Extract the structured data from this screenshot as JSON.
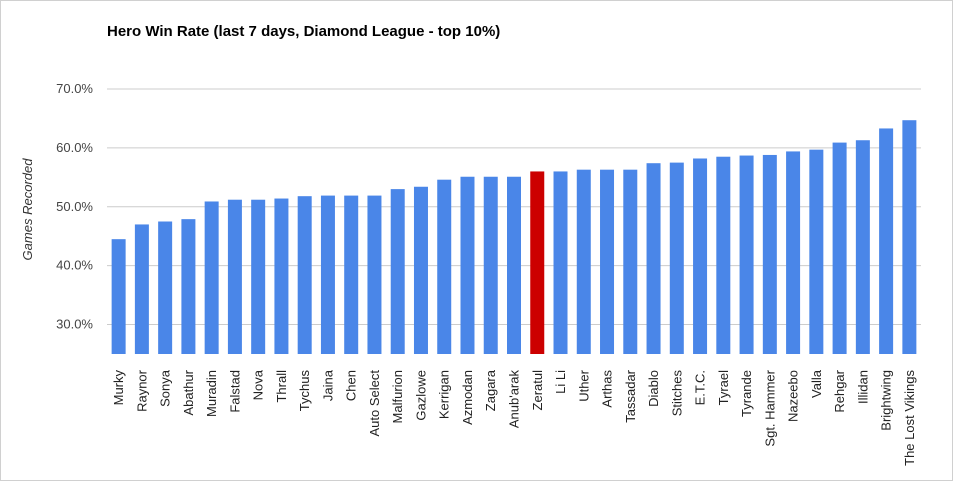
{
  "chart_data": {
    "type": "bar",
    "title": "Hero Win Rate (last 7 days, Diamond League - top 10%)",
    "xlabel": "",
    "ylabel": "Games Recorded",
    "ylim": [
      25,
      72
    ],
    "yticks": [
      30,
      40,
      50,
      60,
      70
    ],
    "ytick_labels": [
      "30.0%",
      "40.0%",
      "50.0%",
      "60.0%",
      "70.0%"
    ],
    "grid": true,
    "categories": [
      "Murky",
      "Raynor",
      "Sonya",
      "Abathur",
      "Muradin",
      "Falstad",
      "Nova",
      "Thrall",
      "Tychus",
      "Jaina",
      "Chen",
      "Auto Select",
      "Malfurion",
      "Gazlowe",
      "Kerrigan",
      "Azmodan",
      "Zagara",
      "Anub'arak",
      "Zeratul",
      "Li Li",
      "Uther",
      "Arthas",
      "Tassadar",
      "Diablo",
      "Stitches",
      "E.T.C.",
      "Tyrael",
      "Tyrande",
      "Sgt. Hammer",
      "Nazeebo",
      "Valla",
      "Rehgar",
      "Illidan",
      "Brightwing",
      "The Lost Vikings"
    ],
    "values": [
      44.5,
      47.0,
      47.5,
      47.9,
      50.9,
      51.2,
      51.2,
      51.4,
      51.8,
      51.9,
      51.9,
      51.9,
      53.0,
      53.4,
      54.6,
      55.1,
      55.1,
      55.1,
      56.0,
      56.0,
      56.3,
      56.3,
      56.3,
      57.4,
      57.5,
      58.2,
      58.5,
      58.7,
      58.8,
      59.4,
      59.7,
      60.9,
      61.3,
      63.3,
      64.7
    ],
    "colors": {
      "default": "#4a86e8",
      "highlight": "#cc0000",
      "grid": "#cccccc"
    },
    "highlight_category": "Zeratul"
  }
}
